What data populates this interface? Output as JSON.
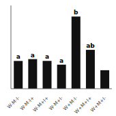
{
  "chart_data": {
    "type": "bar",
    "categories": [
      "W-M-I-",
      "W-M-I+",
      "W-M+I+",
      "W-M+I-",
      "W+M-I-",
      "W+M+I+",
      "W+M+I-"
    ],
    "values": [
      30,
      32,
      30,
      26,
      78,
      42,
      20
    ],
    "color": "#111111",
    "ylim": [
      0,
      90
    ],
    "grid": false,
    "tick_labels": "x",
    "annotations": [
      {
        "category": "W-M-I-",
        "text": "a"
      },
      {
        "category": "W-M-I+",
        "text": "a"
      },
      {
        "category": "W-M+I+",
        "text": "a"
      },
      {
        "category": "W-M+I-",
        "text": "a"
      },
      {
        "category": "W+M-I-",
        "text": "b"
      },
      {
        "category": "W+M+I+",
        "text": "ab"
      }
    ]
  }
}
